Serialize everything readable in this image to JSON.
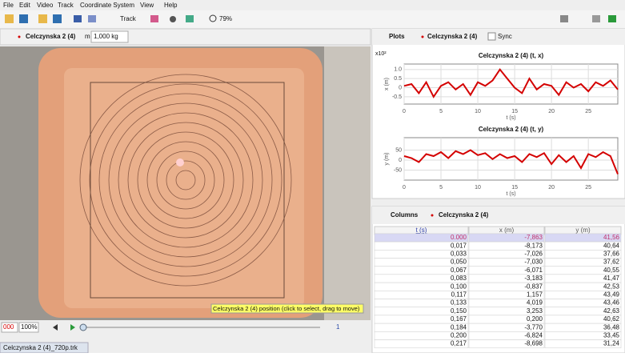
{
  "menu": [
    "File",
    "Edit",
    "Video",
    "Track",
    "Coordinate System",
    "View",
    "Help"
  ],
  "toolbar": {
    "track": "Track",
    "zoom": "79%"
  },
  "video_panel": {
    "track_name": "Celczynska 2 (4)",
    "mass_label": "m",
    "mass": "1,000 kg",
    "tooltip": "Celczynska 2 (4) position (click to select, drag to move)",
    "frame": "000",
    "rate": "100%",
    "step": "1"
  },
  "file_tab": "Celczynska 2 (4)_720p.trk",
  "plot_panel": {
    "plots_button": "Plots",
    "track": "Celczynska 2 (4)",
    "sync": "Sync"
  },
  "chart_data": [
    {
      "type": "line",
      "title": "Celczynska 2 (4) (t, x)",
      "scale_note": "x10²",
      "x_label": "t (s)",
      "y_label": "x (m)",
      "x": [
        0,
        1,
        2,
        3,
        4,
        5,
        6,
        7,
        8,
        9,
        10,
        11,
        12,
        13,
        14,
        15,
        16,
        17,
        18,
        19,
        20,
        21,
        22,
        23,
        24,
        25,
        26,
        27,
        28,
        29
      ],
      "series": [
        {
          "color": "#d40000",
          "values": [
            0.1,
            0.2,
            -0.3,
            0.3,
            -0.5,
            0.1,
            0.3,
            -0.1,
            0.2,
            -0.4,
            0.3,
            0.1,
            0.4,
            1.0,
            0.5,
            0.0,
            -0.3,
            0.5,
            -0.1,
            0.2,
            0.1,
            -0.4,
            0.3,
            0.0,
            0.2,
            -0.2,
            0.3,
            0.1,
            0.4,
            -0.1
          ]
        }
      ],
      "xlim": [
        0,
        29
      ],
      "ylim": [
        -0.9,
        1.3
      ],
      "xticks": [
        0,
        5,
        10,
        15,
        20,
        25
      ],
      "yticks": [
        {
          "value": 1,
          "label": "1.0"
        },
        0.5,
        0,
        -0.5
      ],
      "grid": true
    },
    {
      "type": "line",
      "title": "Celczynska 2 (4) (t, y)",
      "x_label": "t (s)",
      "y_label": "y (m)",
      "x": [
        0,
        1,
        2,
        3,
        4,
        5,
        6,
        7,
        8,
        9,
        10,
        11,
        12,
        13,
        14,
        15,
        16,
        17,
        18,
        19,
        20,
        21,
        22,
        23,
        24,
        25,
        26,
        27,
        28,
        29
      ],
      "series": [
        {
          "color": "#d40000",
          "values": [
            20,
            10,
            -10,
            30,
            20,
            40,
            10,
            45,
            30,
            50,
            25,
            35,
            5,
            30,
            10,
            20,
            -10,
            30,
            15,
            35,
            -20,
            25,
            -10,
            20,
            -40,
            30,
            15,
            40,
            20,
            -70
          ]
        }
      ],
      "xlim": [
        0,
        29
      ],
      "ylim": [
        -100,
        112
      ],
      "xticks": [
        0,
        5,
        10,
        15,
        20,
        25
      ],
      "yticks": [
        50,
        0,
        -50
      ],
      "grid": true
    }
  ],
  "table": {
    "columns_button": "Columns",
    "track": "Celczynska 2 (4)",
    "header": [
      "t (s)",
      "x (m)",
      "y (m)"
    ],
    "rows": [
      [
        "0.000",
        "-7,863",
        "41,56"
      ],
      [
        "0,017",
        "-8,173",
        "40,64"
      ],
      [
        "0,033",
        "-7,026",
        "37,66"
      ],
      [
        "0,050",
        "-7,030",
        "37,62"
      ],
      [
        "0,067",
        "-6,071",
        "40,55"
      ],
      [
        "0,083",
        "-3,183",
        "41,47"
      ],
      [
        "0,100",
        "-0,837",
        "42,53"
      ],
      [
        "0,117",
        "1,157",
        "43,49"
      ],
      [
        "0,133",
        "4,019",
        "43,46"
      ],
      [
        "0,150",
        "3,253",
        "42,63"
      ],
      [
        "0,167",
        "0,200",
        "40,62"
      ],
      [
        "0,184",
        "-3,770",
        "36,48"
      ],
      [
        "0,200",
        "-6,824",
        "33,45"
      ],
      [
        "0,217",
        "-8,698",
        "31,24"
      ]
    ]
  }
}
